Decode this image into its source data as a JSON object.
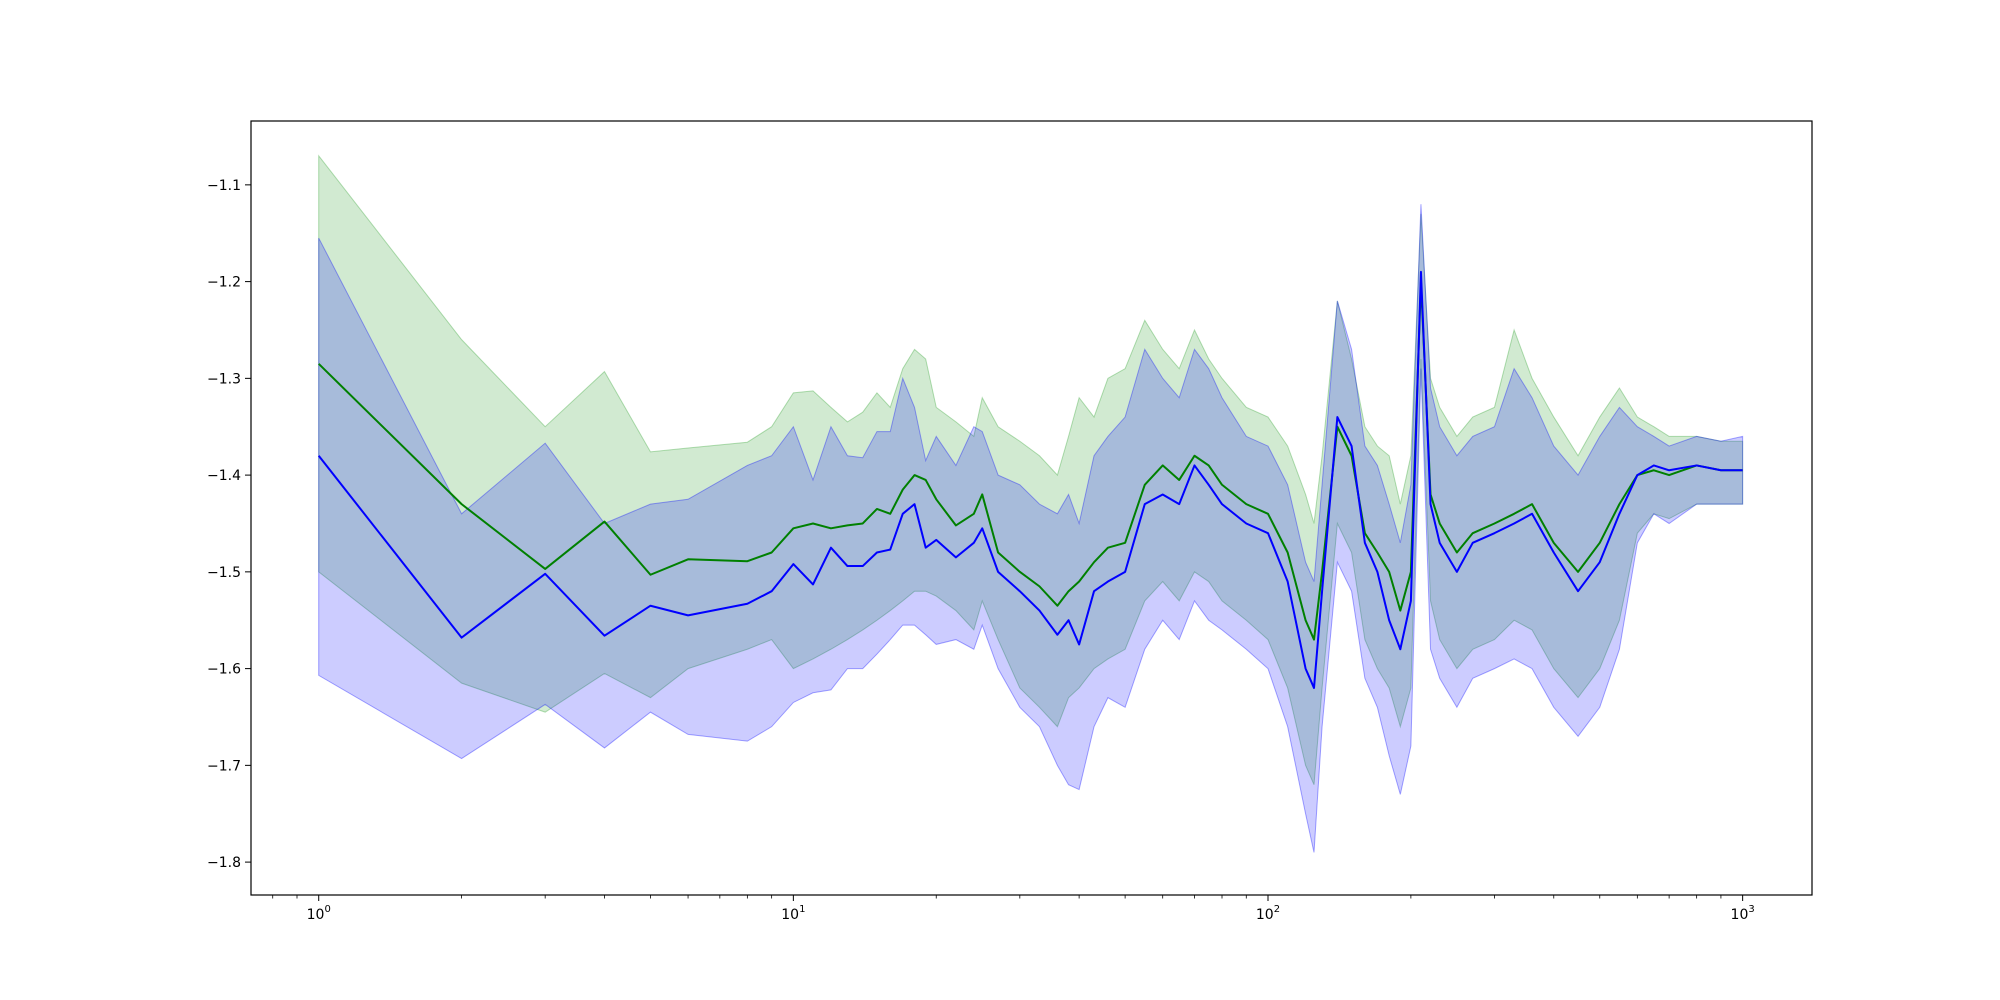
{
  "chart_data": {
    "type": "line",
    "title": "",
    "xlabel": "",
    "ylabel": "",
    "x_scale": "log",
    "xlim": [
      0.72,
      1400
    ],
    "ylim": [
      -1.834,
      -1.034
    ],
    "grid": false,
    "legend": "none",
    "x_ticks": [
      {
        "value": 1,
        "base": "10",
        "exp": "0"
      },
      {
        "value": 10,
        "base": "10",
        "exp": "1"
      },
      {
        "value": 100,
        "base": "10",
        "exp": "2"
      },
      {
        "value": 1000,
        "base": "10",
        "exp": "3"
      }
    ],
    "y_ticks": [
      {
        "value": -1.1,
        "label": "−1.1"
      },
      {
        "value": -1.2,
        "label": "−1.2"
      },
      {
        "value": -1.3,
        "label": "−1.3"
      },
      {
        "value": -1.4,
        "label": "−1.4"
      },
      {
        "value": -1.5,
        "label": "−1.5"
      },
      {
        "value": -1.6,
        "label": "−1.6"
      },
      {
        "value": -1.7,
        "label": "−1.7"
      },
      {
        "value": -1.8,
        "label": "−1.8"
      }
    ],
    "series": [
      {
        "color": "#008000",
        "band_color": "#2ca02c",
        "band_opacity": 0.22,
        "x": [
          1,
          2,
          3,
          4,
          5,
          6,
          8,
          9,
          10,
          11,
          12,
          13,
          14,
          15,
          16,
          17,
          18,
          19,
          20,
          22,
          24,
          25,
          27,
          30,
          33,
          36,
          38,
          40,
          43,
          46,
          50,
          55,
          60,
          65,
          70,
          75,
          80,
          90,
          100,
          110,
          120,
          125,
          130,
          140,
          150,
          160,
          170,
          180,
          190,
          200,
          210,
          220,
          230,
          250,
          270,
          300,
          330,
          360,
          400,
          450,
          500,
          550,
          600,
          650,
          700,
          800,
          900,
          1000
        ],
        "y": [
          -1.285,
          -1.43,
          -1.497,
          -1.448,
          -1.503,
          -1.487,
          -1.489,
          -1.48,
          -1.455,
          -1.45,
          -1.455,
          -1.452,
          -1.45,
          -1.435,
          -1.44,
          -1.415,
          -1.4,
          -1.405,
          -1.425,
          -1.452,
          -1.44,
          -1.42,
          -1.48,
          -1.5,
          -1.515,
          -1.535,
          -1.52,
          -1.51,
          -1.49,
          -1.475,
          -1.47,
          -1.41,
          -1.39,
          -1.405,
          -1.38,
          -1.39,
          -1.41,
          -1.43,
          -1.44,
          -1.48,
          -1.55,
          -1.57,
          -1.5,
          -1.35,
          -1.38,
          -1.46,
          -1.48,
          -1.5,
          -1.54,
          -1.5,
          -1.2,
          -1.42,
          -1.45,
          -1.48,
          -1.46,
          -1.45,
          -1.44,
          -1.43,
          -1.47,
          -1.5,
          -1.47,
          -1.43,
          -1.4,
          -1.395,
          -1.4,
          -1.39,
          -1.395,
          -1.395
        ],
        "upper": [
          -1.07,
          -1.26,
          -1.35,
          -1.293,
          -1.376,
          -1.372,
          -1.366,
          -1.35,
          -1.315,
          -1.313,
          -1.33,
          -1.345,
          -1.335,
          -1.315,
          -1.33,
          -1.29,
          -1.27,
          -1.28,
          -1.33,
          -1.345,
          -1.36,
          -1.32,
          -1.35,
          -1.365,
          -1.38,
          -1.4,
          -1.36,
          -1.32,
          -1.34,
          -1.3,
          -1.29,
          -1.24,
          -1.27,
          -1.29,
          -1.25,
          -1.28,
          -1.3,
          -1.33,
          -1.34,
          -1.37,
          -1.42,
          -1.45,
          -1.38,
          -1.22,
          -1.28,
          -1.35,
          -1.37,
          -1.38,
          -1.43,
          -1.38,
          -1.13,
          -1.3,
          -1.33,
          -1.36,
          -1.34,
          -1.33,
          -1.25,
          -1.3,
          -1.34,
          -1.38,
          -1.34,
          -1.31,
          -1.34,
          -1.35,
          -1.36,
          -1.36,
          -1.365,
          -1.365
        ],
        "lower": [
          -1.5,
          -1.615,
          -1.645,
          -1.605,
          -1.63,
          -1.6,
          -1.58,
          -1.57,
          -1.6,
          -1.59,
          -1.58,
          -1.57,
          -1.56,
          -1.55,
          -1.54,
          -1.53,
          -1.52,
          -1.52,
          -1.525,
          -1.54,
          -1.56,
          -1.53,
          -1.57,
          -1.62,
          -1.64,
          -1.66,
          -1.63,
          -1.62,
          -1.6,
          -1.59,
          -1.58,
          -1.53,
          -1.51,
          -1.53,
          -1.5,
          -1.51,
          -1.53,
          -1.55,
          -1.57,
          -1.62,
          -1.7,
          -1.72,
          -1.62,
          -1.45,
          -1.48,
          -1.57,
          -1.6,
          -1.62,
          -1.66,
          -1.62,
          -1.28,
          -1.53,
          -1.57,
          -1.6,
          -1.58,
          -1.57,
          -1.55,
          -1.56,
          -1.6,
          -1.63,
          -1.6,
          -1.55,
          -1.46,
          -1.44,
          -1.445,
          -1.43,
          -1.43,
          -1.43
        ]
      },
      {
        "color": "#0000ff",
        "band_color": "#0000ff",
        "band_opacity": 0.2,
        "x": [
          1,
          2,
          3,
          4,
          5,
          6,
          8,
          9,
          10,
          11,
          12,
          13,
          14,
          15,
          16,
          17,
          18,
          19,
          20,
          22,
          24,
          25,
          27,
          30,
          33,
          36,
          38,
          40,
          43,
          46,
          50,
          55,
          60,
          65,
          70,
          75,
          80,
          90,
          100,
          110,
          120,
          125,
          130,
          140,
          150,
          160,
          170,
          180,
          190,
          200,
          210,
          220,
          230,
          250,
          270,
          300,
          330,
          360,
          400,
          450,
          500,
          550,
          600,
          650,
          700,
          800,
          900,
          1000
        ],
        "y": [
          -1.38,
          -1.568,
          -1.502,
          -1.566,
          -1.535,
          -1.545,
          -1.533,
          -1.52,
          -1.492,
          -1.513,
          -1.475,
          -1.494,
          -1.494,
          -1.48,
          -1.477,
          -1.44,
          -1.43,
          -1.475,
          -1.467,
          -1.485,
          -1.47,
          -1.455,
          -1.5,
          -1.52,
          -1.54,
          -1.565,
          -1.55,
          -1.575,
          -1.52,
          -1.51,
          -1.5,
          -1.43,
          -1.42,
          -1.43,
          -1.39,
          -1.41,
          -1.43,
          -1.45,
          -1.46,
          -1.51,
          -1.6,
          -1.62,
          -1.52,
          -1.34,
          -1.37,
          -1.47,
          -1.5,
          -1.55,
          -1.58,
          -1.53,
          -1.19,
          -1.43,
          -1.47,
          -1.5,
          -1.47,
          -1.46,
          -1.45,
          -1.44,
          -1.48,
          -1.52,
          -1.49,
          -1.44,
          -1.4,
          -1.39,
          -1.395,
          -1.39,
          -1.395,
          -1.395
        ],
        "upper": [
          -1.155,
          -1.44,
          -1.367,
          -1.45,
          -1.43,
          -1.425,
          -1.39,
          -1.38,
          -1.35,
          -1.405,
          -1.35,
          -1.38,
          -1.382,
          -1.355,
          -1.355,
          -1.3,
          -1.33,
          -1.385,
          -1.36,
          -1.39,
          -1.35,
          -1.355,
          -1.4,
          -1.41,
          -1.43,
          -1.44,
          -1.42,
          -1.45,
          -1.38,
          -1.36,
          -1.34,
          -1.27,
          -1.3,
          -1.32,
          -1.27,
          -1.29,
          -1.32,
          -1.36,
          -1.37,
          -1.41,
          -1.49,
          -1.51,
          -1.41,
          -1.22,
          -1.27,
          -1.37,
          -1.39,
          -1.43,
          -1.47,
          -1.41,
          -1.12,
          -1.31,
          -1.35,
          -1.38,
          -1.36,
          -1.35,
          -1.29,
          -1.32,
          -1.37,
          -1.4,
          -1.36,
          -1.33,
          -1.35,
          -1.36,
          -1.37,
          -1.36,
          -1.365,
          -1.36
        ],
        "lower": [
          -1.607,
          -1.693,
          -1.637,
          -1.682,
          -1.645,
          -1.668,
          -1.675,
          -1.66,
          -1.635,
          -1.625,
          -1.622,
          -1.6,
          -1.6,
          -1.585,
          -1.57,
          -1.555,
          -1.555,
          -1.565,
          -1.575,
          -1.57,
          -1.58,
          -1.555,
          -1.6,
          -1.64,
          -1.66,
          -1.7,
          -1.72,
          -1.725,
          -1.66,
          -1.63,
          -1.64,
          -1.58,
          -1.55,
          -1.57,
          -1.53,
          -1.55,
          -1.56,
          -1.58,
          -1.6,
          -1.66,
          -1.75,
          -1.79,
          -1.66,
          -1.49,
          -1.52,
          -1.61,
          -1.64,
          -1.69,
          -1.73,
          -1.68,
          -1.29,
          -1.58,
          -1.61,
          -1.64,
          -1.61,
          -1.6,
          -1.59,
          -1.6,
          -1.64,
          -1.67,
          -1.64,
          -1.58,
          -1.47,
          -1.44,
          -1.45,
          -1.43,
          -1.43,
          -1.43
        ]
      }
    ]
  }
}
